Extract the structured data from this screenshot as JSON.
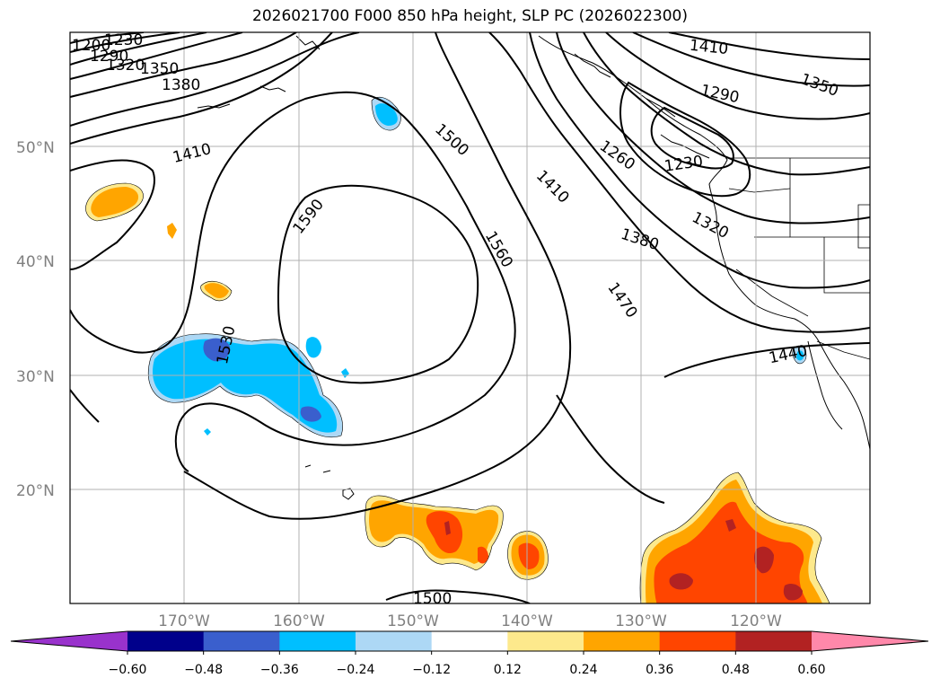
{
  "title": "2026021700 F000 850 hPa height, SLP PC (2026022300)",
  "map": {
    "region": "North Pacific / North America west coast",
    "lat_range": [
      10,
      60
    ],
    "lon_range": [
      -180,
      -110
    ],
    "lat_ticks": [
      "20°N",
      "30°N",
      "40°N",
      "50°N"
    ],
    "lon_ticks": [
      "170°W",
      "160°W",
      "150°W",
      "140°W",
      "130°W",
      "120°W"
    ],
    "height_contour_labels": [
      {
        "text": "1200"
      },
      {
        "text": "1230"
      },
      {
        "text": "1290"
      },
      {
        "text": "1320"
      },
      {
        "text": "1350"
      },
      {
        "text": "1380"
      },
      {
        "text": "1410"
      },
      {
        "text": "1410"
      },
      {
        "text": "1500"
      },
      {
        "text": "1590"
      },
      {
        "text": "1560"
      },
      {
        "text": "1530"
      },
      {
        "text": "1410"
      },
      {
        "text": "1290"
      },
      {
        "text": "1350"
      },
      {
        "text": "1260"
      },
      {
        "text": "1230"
      },
      {
        "text": "1380"
      },
      {
        "text": "1320"
      },
      {
        "text": "1470"
      },
      {
        "text": "1440"
      },
      {
        "text": "1500"
      }
    ]
  },
  "colorbar": {
    "tick_labels": [
      "−0.60",
      "−0.48",
      "−0.36",
      "−0.24",
      "−0.12",
      "0.12",
      "0.24",
      "0.36",
      "0.48",
      "0.60"
    ],
    "colors": [
      "#9932cc",
      "#00008b",
      "#3a5fcd",
      "#00bfff",
      "#add8f5",
      "#ffffff",
      "#fde98c",
      "#ffa500",
      "#ff4500",
      "#b22222",
      "#ff88aa"
    ]
  },
  "shade_colors": {
    "neg_024": "#00bfff",
    "neg_012": "#add8f5",
    "neg_036": "#3a5fcd",
    "pos_012": "#fde98c",
    "pos_024": "#ffa500",
    "pos_036": "#ff4500",
    "pos_048": "#b22222"
  }
}
